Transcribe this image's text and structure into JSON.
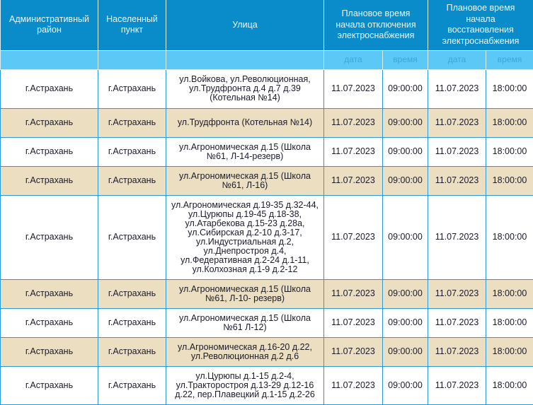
{
  "headers": {
    "district": "Административный\nрайон",
    "locality": "Населенный\nпункт",
    "street": "Улица",
    "off_time": "Плановое время\nначала отключения\nэлектроснабжения",
    "restore_time": "Плановое время\nначала\nвосстановления\nэлектроснабжения",
    "date": "дата",
    "time": "время"
  },
  "colors": {
    "header": "#0a8ccb",
    "subheader": "#5cc8f5",
    "alt_row": "#ecdfc1",
    "border": "#2a9ad9"
  },
  "rows": [
    {
      "district": "г.Астрахань",
      "locality": "г.Астрахань",
      "street": "ул.Войкова, ул.Революционная,\nул.Трудфронта д.4 д.7 д.39\n(Котельная №14)",
      "off_date": "11.07.2023",
      "off_time": "09:00:00",
      "on_date": "11.07.2023",
      "on_time": "18:00:00"
    },
    {
      "district": "г.Астрахань",
      "locality": "г.Астрахань",
      "street": "ул.Трудфронта (Котельная №14)",
      "off_date": "11.07.2023",
      "off_time": "09:00:00",
      "on_date": "11.07.2023",
      "on_time": "18:00:00"
    },
    {
      "district": "г.Астрахань",
      "locality": "г.Астрахань",
      "street": "ул.Агрономическая д.15 (Школа\n№61, Л-14-резерв)",
      "off_date": "11.07.2023",
      "off_time": "09:00:00",
      "on_date": "11.07.2023",
      "on_time": "18:00:00"
    },
    {
      "district": "г.Астрахань",
      "locality": "г.Астрахань",
      "street": "ул.Агрономическая д.15 (Школа\n№61, Л-16)",
      "off_date": "11.07.2023",
      "off_time": "09:00:00",
      "on_date": "11.07.2023",
      "on_time": "18:00:00"
    },
    {
      "district": "г.Астрахань",
      "locality": "г.Астрахань",
      "street": "ул.Агрономическая д.19-35 д.32-44,\nул.Цурюпы д.19-45 д.18-38,\nул.Атарбекова д.15-23 д.28а,\nул.Сибирская д.2-10 д.3-17,\nул.Индустриальная д.2,\nул.Днепростроя д.4,\nул.Федеративная д.2-24 д.1-11,\nул.Колхозная д.1-9 д.2-12",
      "off_date": "11.07.2023",
      "off_time": "09:00:00",
      "on_date": "11.07.2023",
      "on_time": "18:00:00"
    },
    {
      "district": "г.Астрахань",
      "locality": "г.Астрахань",
      "street": "ул.Агрономическая д.15 (Школа\n№61, Л-10- резерв)",
      "off_date": "11.07.2023",
      "off_time": "09:00:00",
      "on_date": "11.07.2023",
      "on_time": "18:00:00"
    },
    {
      "district": "г.Астрахань",
      "locality": "г.Астрахань",
      "street": "ул.Агрономическая д.15 (Школа\n№61 Л-12)",
      "off_date": "11.07.2023",
      "off_time": "09:00:00",
      "on_date": "11.07.2023",
      "on_time": "18:00:00"
    },
    {
      "district": "г.Астрахань",
      "locality": "г.Астрахань",
      "street": "ул.Агрономическая д.16-20 д.22,\nул.Революционная д.2 д.6",
      "off_date": "11.07.2023",
      "off_time": "09:00:00",
      "on_date": "11.07.2023",
      "on_time": "18:00:00"
    },
    {
      "district": "г.Астрахань",
      "locality": "г.Астрахань",
      "street": "ул.Цурюпы д.1-15 д.2-4,\nул.Тракторостроя д.13-29 д.12-16\nд.22, пер.Плавецкий д.1-15 д.2-26",
      "off_date": "11.07.2023",
      "off_time": "09:00:00",
      "on_date": "11.07.2023",
      "on_time": "18:00:00"
    }
  ]
}
